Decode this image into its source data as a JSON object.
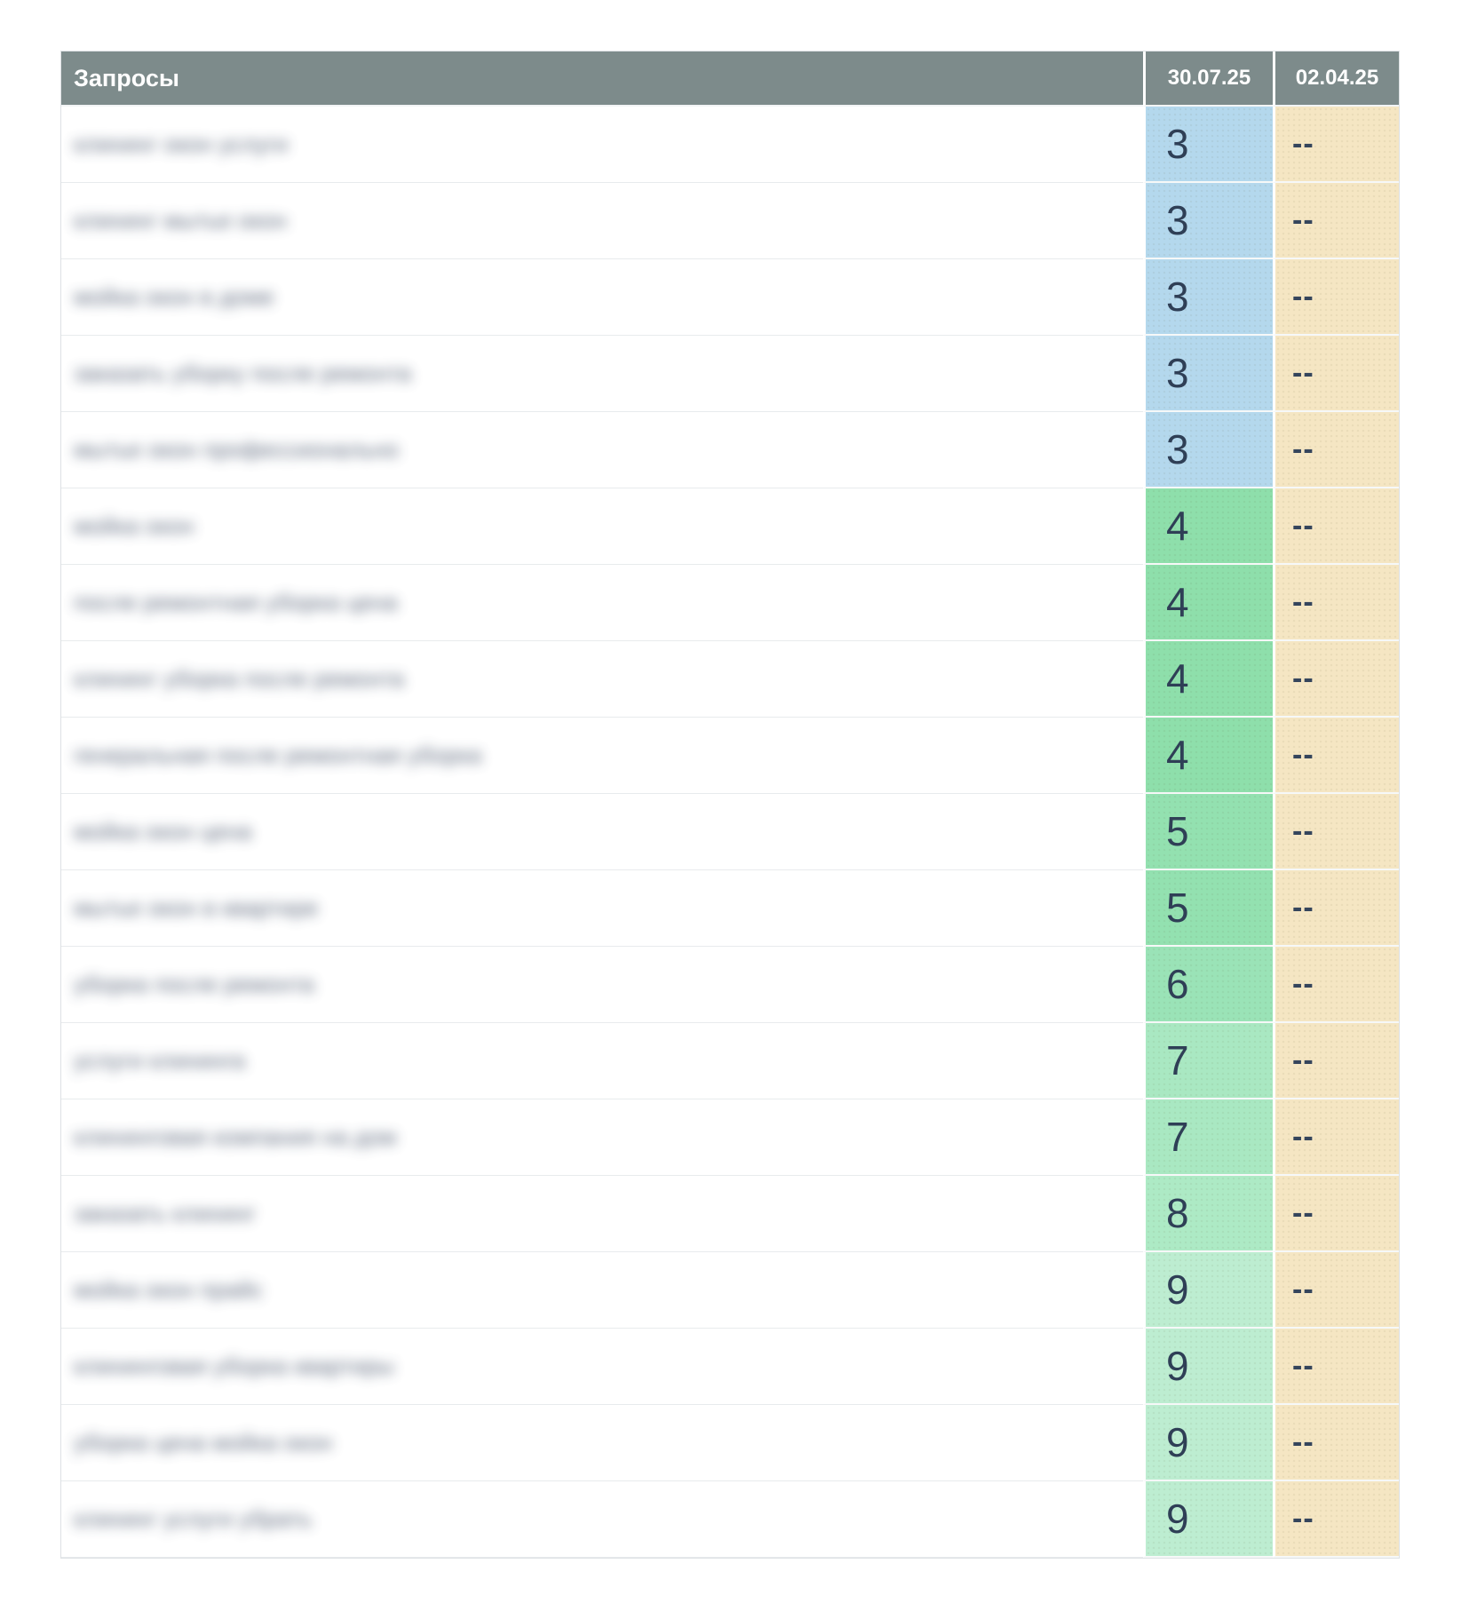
{
  "table": {
    "queries_redacted": true,
    "header": {
      "queries_label": "Запросы",
      "date_current": "30.07.25",
      "date_previous": "02.04.25"
    },
    "rows": [
      {
        "query_placeholder": "клининг окон услуги",
        "position": "3",
        "previous": "--",
        "color": "#b4d8ed"
      },
      {
        "query_placeholder": "клининг мытье окон",
        "position": "3",
        "previous": "--",
        "color": "#b4d8ed"
      },
      {
        "query_placeholder": "мойка окон в доме",
        "position": "3",
        "previous": "--",
        "color": "#b4d8ed"
      },
      {
        "query_placeholder": "заказать уборку после ремонта",
        "position": "3",
        "previous": "--",
        "color": "#b4d8ed"
      },
      {
        "query_placeholder": "мытье окон профессионально",
        "position": "3",
        "previous": "--",
        "color": "#b4d8ed"
      },
      {
        "query_placeholder": "мойка окон",
        "position": "4",
        "previous": "--",
        "color": "#8edfab"
      },
      {
        "query_placeholder": "после ремонтная уборка цена",
        "position": "4",
        "previous": "--",
        "color": "#8edfab"
      },
      {
        "query_placeholder": "клининг уборка после ремонта",
        "position": "4",
        "previous": "--",
        "color": "#8edfab"
      },
      {
        "query_placeholder": "генеральная после ремонтная уборка",
        "position": "4",
        "previous": "--",
        "color": "#8edfab"
      },
      {
        "query_placeholder": "мойка окон цена",
        "position": "5",
        "previous": "--",
        "color": "#93e1b0"
      },
      {
        "query_placeholder": "мытье окон в квартире",
        "position": "5",
        "previous": "--",
        "color": "#93e1b0"
      },
      {
        "query_placeholder": "уборка после ремонта",
        "position": "6",
        "previous": "--",
        "color": "#9ae3b7"
      },
      {
        "query_placeholder": "услуги клининга",
        "position": "7",
        "previous": "--",
        "color": "#a9e8c2"
      },
      {
        "query_placeholder": "клининговая компания на дом",
        "position": "7",
        "previous": "--",
        "color": "#a9e8c2"
      },
      {
        "query_placeholder": "заказать клининг",
        "position": "8",
        "previous": "--",
        "color": "#adeac5"
      },
      {
        "query_placeholder": "мойка окон прайс",
        "position": "9",
        "previous": "--",
        "color": "#bdedd1"
      },
      {
        "query_placeholder": "клининговая уборка квартиры",
        "position": "9",
        "previous": "--",
        "color": "#bdedd1"
      },
      {
        "query_placeholder": "уборка цена мойка окон",
        "position": "9",
        "previous": "--",
        "color": "#bdedd1"
      },
      {
        "query_placeholder": "клининг услуги убрать",
        "position": "9",
        "previous": "--",
        "color": "#bdedd1"
      }
    ]
  },
  "colors": {
    "header_bg": "#7d8b8b",
    "header_text": "#ffffff",
    "position_3_blue": "#b4d8ed",
    "position_4_green": "#8edfab",
    "position_5_green": "#93e1b0",
    "position_6_green": "#9ae3b7",
    "position_7_green": "#a9e8c2",
    "position_8_green": "#adeac5",
    "position_9_green": "#bdedd1",
    "previous_bg": "#f5e6c3",
    "value_text": "#2f3f56"
  }
}
